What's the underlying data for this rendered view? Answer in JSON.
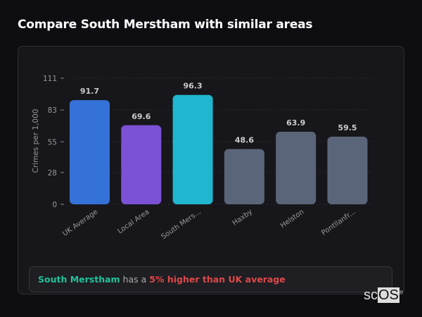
{
  "title": "Compare South Merstham with similar areas",
  "chart_data": {
    "type": "bar",
    "categories": [
      "UK Average",
      "Local Area",
      "South Mers...",
      "Haxby",
      "Helston",
      "Pontllanfr..."
    ],
    "values": [
      91.7,
      69.6,
      96.3,
      48.6,
      63.9,
      59.5
    ],
    "colors": [
      "#3572d8",
      "#7b52d6",
      "#20b6cf",
      "#5b6579",
      "#5b6579",
      "#5b6579"
    ],
    "ylabel": "Crimes per 1,000",
    "xlabel": "",
    "ylim": [
      0,
      111
    ],
    "yticks": [
      0,
      28,
      55,
      83,
      111
    ],
    "grid": true
  },
  "insight": {
    "area": "South Merstham",
    "connector": "has a",
    "comparison": "5% higher than UK average"
  },
  "logo": {
    "text": "scOS"
  }
}
